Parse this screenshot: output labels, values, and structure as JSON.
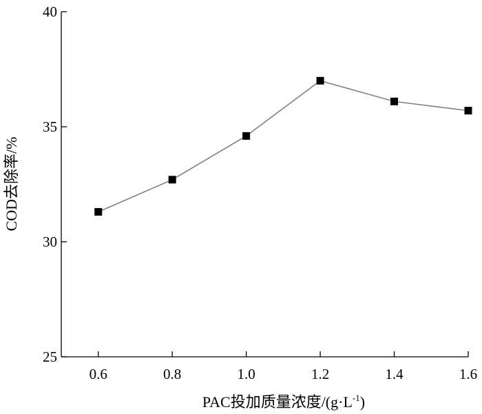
{
  "chart_data": {
    "type": "line",
    "x": [
      0.6,
      0.8,
      1.0,
      1.2,
      1.4,
      1.6
    ],
    "x_tick_labels": [
      "0.6",
      "0.8",
      "1.0",
      "1.2",
      "1.4",
      "1.6"
    ],
    "series": [
      {
        "values": [
          31.3,
          32.7,
          34.6,
          37.0,
          36.1,
          35.7
        ]
      }
    ],
    "xlabel": "PAC投加质量浓度/(g·L",
    "xlabel_superscript": "-1",
    "xlabel_suffix": ")",
    "ylabel": "COD去除率/%",
    "xlim": [
      0.5,
      1.6
    ],
    "ylim": [
      25,
      40
    ],
    "y_ticks": [
      25,
      30,
      35,
      40
    ],
    "y_tick_labels": [
      "25",
      "30",
      "35",
      "40"
    ],
    "grid": false,
    "line_color": "#808080",
    "marker_color": "#000000",
    "marker": "square"
  }
}
